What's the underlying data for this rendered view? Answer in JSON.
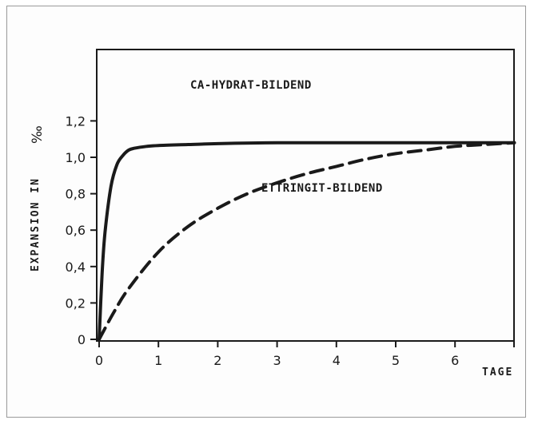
{
  "chart_data": {
    "type": "line",
    "xlabel": "TAGE",
    "ylabel": "EXPANSION IN",
    "ylabel_unit": "‰",
    "xlim": [
      0,
      7
    ],
    "ylim": [
      0,
      1.3
    ],
    "x_ticks": [
      0,
      1,
      2,
      3,
      4,
      5,
      6
    ],
    "x_tick_labels": [
      "0",
      "1",
      "2",
      "3",
      "4",
      "5",
      "6"
    ],
    "y_ticks": [
      0,
      0.2,
      0.4,
      0.6,
      0.8,
      1.0,
      1.2
    ],
    "y_tick_labels": [
      "0",
      "0,2",
      "0,4",
      "0,6",
      "0,8",
      "1,0",
      "1,2"
    ],
    "grid": false,
    "legend": "none",
    "series": [
      {
        "name": "CA-HYDRAT-BILDEND",
        "style": "solid",
        "x": [
          0,
          0.05,
          0.1,
          0.2,
          0.3,
          0.4,
          0.5,
          0.6,
          0.8,
          1.0,
          1.5,
          2.0,
          3.0,
          4.0,
          5.0,
          6.0,
          7.0
        ],
        "y": [
          0,
          0.36,
          0.59,
          0.84,
          0.96,
          1.01,
          1.04,
          1.05,
          1.06,
          1.065,
          1.07,
          1.075,
          1.08,
          1.08,
          1.08,
          1.08,
          1.08
        ]
      },
      {
        "name": "ETTRINGIT-BILDEND",
        "style": "dashed",
        "x": [
          0,
          0.25,
          0.5,
          1.0,
          1.5,
          2.0,
          2.5,
          3.0,
          3.5,
          4.0,
          4.5,
          5.0,
          5.5,
          6.0,
          6.5,
          7.0
        ],
        "y": [
          0,
          0.15,
          0.28,
          0.48,
          0.62,
          0.72,
          0.8,
          0.86,
          0.91,
          0.95,
          0.99,
          1.02,
          1.04,
          1.06,
          1.07,
          1.08
        ]
      }
    ],
    "colors": {
      "line": "#1a1a1a",
      "frame": "#9a9a9a"
    }
  }
}
